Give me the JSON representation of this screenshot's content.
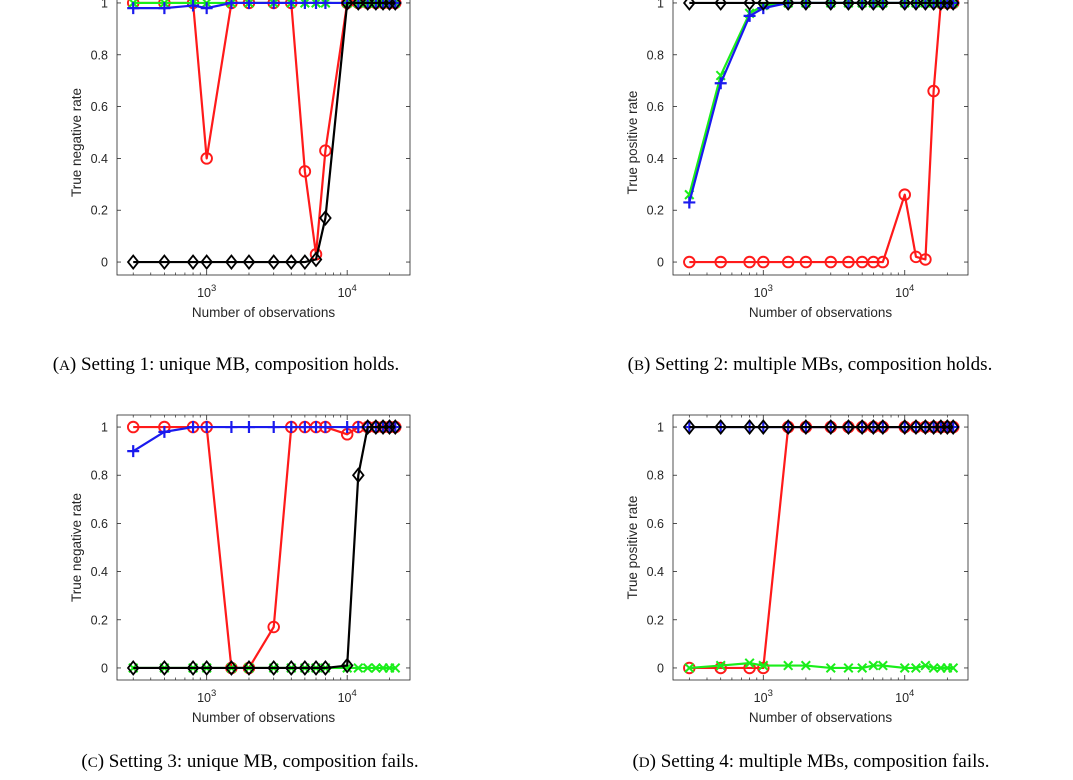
{
  "colors": {
    "red": "#ff1a1a",
    "green": "#1aee1a",
    "blue": "#1a1aee",
    "black": "#000000"
  },
  "chart_data": [
    {
      "panel": "A",
      "type": "line",
      "caption": "(A) Setting 1: unique MB, composition holds.",
      "xlabel": "Number of observations",
      "ylabel": "True negative rate",
      "xscale": "log",
      "xlim": [
        230,
        28000
      ],
      "ylim": [
        -0.05,
        1.05
      ],
      "xtick_labels": [
        "10^3",
        "10^4"
      ],
      "ytick_labels": [
        "0",
        "0.2",
        "0.4",
        "0.6",
        "0.8",
        "1"
      ],
      "x": [
        300,
        500,
        800,
        1000,
        1500,
        2000,
        3000,
        4000,
        5000,
        6000,
        7000,
        10000,
        12000,
        14000,
        16000,
        18000,
        20000,
        22000
      ],
      "series": [
        {
          "color": "red",
          "marker": "circle",
          "values": [
            1,
            1,
            1,
            0.4,
            1,
            1,
            1,
            1,
            0.35,
            0.03,
            0.43,
            1,
            1,
            1,
            1,
            1,
            1,
            1
          ]
        },
        {
          "color": "green",
          "marker": "x",
          "values": [
            1,
            1,
            1,
            1,
            1,
            1,
            1,
            1,
            1,
            1,
            1,
            1,
            1,
            1,
            1,
            1,
            1,
            1
          ]
        },
        {
          "color": "blue",
          "marker": "plus",
          "values": [
            0.98,
            0.98,
            0.99,
            0.98,
            1,
            1,
            1,
            1,
            1,
            1,
            1,
            1,
            1,
            1,
            1,
            1,
            1,
            1
          ]
        },
        {
          "color": "black",
          "marker": "diamond",
          "values": [
            0,
            0,
            0,
            0,
            0,
            0,
            0,
            0,
            0,
            0.01,
            0.17,
            1,
            1,
            1,
            1,
            1,
            1,
            1
          ]
        }
      ]
    },
    {
      "panel": "B",
      "type": "line",
      "caption": "(B) Setting 2: multiple MBs, composition holds.",
      "xlabel": "Number of observations",
      "ylabel": "True positive rate",
      "xscale": "log",
      "xlim": [
        230,
        28000
      ],
      "ylim": [
        -0.05,
        1.05
      ],
      "xtick_labels": [
        "10^3",
        "10^4"
      ],
      "ytick_labels": [
        "0",
        "0.2",
        "0.4",
        "0.6",
        "0.8",
        "1"
      ],
      "x": [
        300,
        500,
        800,
        1000,
        1500,
        2000,
        3000,
        4000,
        5000,
        6000,
        7000,
        10000,
        12000,
        14000,
        16000,
        18000,
        20000,
        22000
      ],
      "series": [
        {
          "color": "red",
          "marker": "circle",
          "values": [
            0,
            0,
            0,
            0,
            0,
            0,
            0,
            0,
            0,
            0,
            0,
            0.26,
            0.02,
            0.01,
            0.66,
            1,
            1,
            1
          ]
        },
        {
          "color": "green",
          "marker": "x",
          "values": [
            0.26,
            0.72,
            0.96,
            0.99,
            1,
            1,
            1,
            1,
            1,
            1,
            1,
            1,
            1,
            1,
            1,
            1,
            1,
            1
          ]
        },
        {
          "color": "blue",
          "marker": "plus",
          "values": [
            0.23,
            0.69,
            0.95,
            0.98,
            1,
            1,
            1,
            1,
            1,
            1,
            1,
            1,
            1,
            1,
            1,
            1,
            1,
            1
          ]
        },
        {
          "color": "black",
          "marker": "diamond",
          "values": [
            1,
            1,
            1,
            1,
            1,
            1,
            1,
            1,
            1,
            1,
            1,
            1,
            1,
            1,
            1,
            1,
            1,
            1
          ]
        }
      ]
    },
    {
      "panel": "C",
      "type": "line",
      "caption": "(C) Setting 3: unique MB, composition fails.",
      "xlabel": "Number of observations",
      "ylabel": "True negative rate",
      "xscale": "log",
      "xlim": [
        230,
        28000
      ],
      "ylim": [
        -0.05,
        1.05
      ],
      "xtick_labels": [
        "10^3",
        "10^4"
      ],
      "ytick_labels": [
        "0",
        "0.2",
        "0.4",
        "0.6",
        "0.8",
        "1"
      ],
      "x": [
        300,
        500,
        800,
        1000,
        1500,
        2000,
        3000,
        4000,
        5000,
        6000,
        7000,
        10000,
        12000,
        14000,
        16000,
        18000,
        20000,
        22000
      ],
      "series": [
        {
          "color": "red",
          "marker": "circle",
          "values": [
            1,
            1,
            1,
            1,
            0,
            0,
            0.17,
            1,
            1,
            1,
            1,
            0.97,
            1,
            1,
            1,
            1,
            1,
            1
          ]
        },
        {
          "color": "green",
          "marker": "x",
          "values": [
            0,
            0,
            0,
            0,
            0,
            0,
            0,
            0,
            0,
            0,
            0,
            0,
            0,
            0,
            0,
            0,
            0,
            0
          ]
        },
        {
          "color": "blue",
          "marker": "plus",
          "values": [
            0.9,
            0.98,
            1,
            1,
            1,
            1,
            1,
            1,
            1,
            1,
            1,
            1,
            1,
            1,
            1,
            1,
            1,
            1
          ]
        },
        {
          "color": "black",
          "marker": "diamond",
          "values": [
            0,
            0,
            0,
            0,
            0,
            0,
            0,
            0,
            0,
            0,
            0,
            0.01,
            0.8,
            1,
            1,
            1,
            1,
            1
          ]
        }
      ]
    },
    {
      "panel": "D",
      "type": "line",
      "caption": "(D) Setting 4: multiple MBs, composition fails.",
      "xlabel": "Number of observations",
      "ylabel": "True positive rate",
      "xscale": "log",
      "xlim": [
        230,
        28000
      ],
      "ylim": [
        -0.05,
        1.05
      ],
      "xtick_labels": [
        "10^3",
        "10^4"
      ],
      "ytick_labels": [
        "0",
        "0.2",
        "0.4",
        "0.6",
        "0.8",
        "1"
      ],
      "x": [
        300,
        500,
        800,
        1000,
        1500,
        2000,
        3000,
        4000,
        5000,
        6000,
        7000,
        10000,
        12000,
        14000,
        16000,
        18000,
        20000,
        22000
      ],
      "series": [
        {
          "color": "red",
          "marker": "circle",
          "values": [
            0,
            0,
            0,
            0,
            1,
            1,
            1,
            1,
            1,
            1,
            1,
            1,
            1,
            1,
            1,
            1,
            1,
            1
          ]
        },
        {
          "color": "green",
          "marker": "x",
          "values": [
            0,
            0.01,
            0.02,
            0.01,
            0.01,
            0.01,
            0,
            0,
            0,
            0.01,
            0.01,
            0,
            0,
            0.01,
            0,
            0,
            0,
            0
          ]
        },
        {
          "color": "blue",
          "marker": "plus",
          "values": [
            1,
            1,
            1,
            1,
            1,
            1,
            1,
            1,
            1,
            1,
            1,
            1,
            1,
            1,
            1,
            1,
            1,
            1
          ]
        },
        {
          "color": "black",
          "marker": "diamond",
          "values": [
            1,
            1,
            1,
            1,
            1,
            1,
            1,
            1,
            1,
            1,
            1,
            1,
            1,
            1,
            1,
            1,
            1,
            1
          ]
        }
      ]
    }
  ]
}
